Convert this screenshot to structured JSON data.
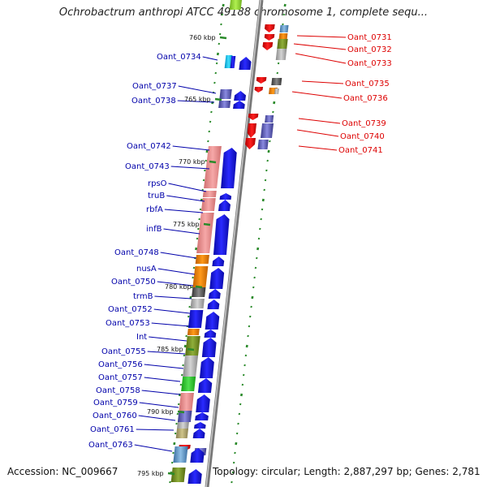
{
  "title": "Ochrobactrum anthropi ATCC 49188 chromosome 1, complete sequ...",
  "footer": {
    "accession": "Accession: NC_009667",
    "topology": "Topology: circular; Length: 2,887,297 bp; Genes: 2,781"
  },
  "kbp_marks": [
    "760 kbp",
    "765 kbp",
    "770 kbp",
    "775 kbp",
    "780 kbp",
    "785 kbp",
    "790 kbp",
    "795 kbp"
  ],
  "left_labels": [
    "Oant_0734",
    "Oant_0737",
    "Oant_0738",
    "Oant_0742",
    "Oant_0743",
    "rpsO",
    "truB",
    "rbfA",
    "infB",
    "Oant_0748",
    "nusA",
    "Oant_0750",
    "trmB",
    "Oant_0752",
    "Oant_0753",
    "Int",
    "Oant_0755",
    "Oant_0756",
    "Oant_0757",
    "Oant_0758",
    "Oant_0759",
    "Oant_0760",
    "Oant_0761",
    "Oant_0763"
  ],
  "right_labels": [
    "Oant_0731",
    "Oant_0732",
    "Oant_0733",
    "Oant_0735",
    "Oant_0736",
    "Oant_0739",
    "Oant_0740",
    "Oant_0741"
  ],
  "colors": {
    "forward_strand": "#0000ff",
    "reverse_strand": "#ee0000",
    "backbone": "#888888",
    "tick": "#2a8a2a",
    "left_label": "#0000aa",
    "right_label": "#dd0000"
  }
}
